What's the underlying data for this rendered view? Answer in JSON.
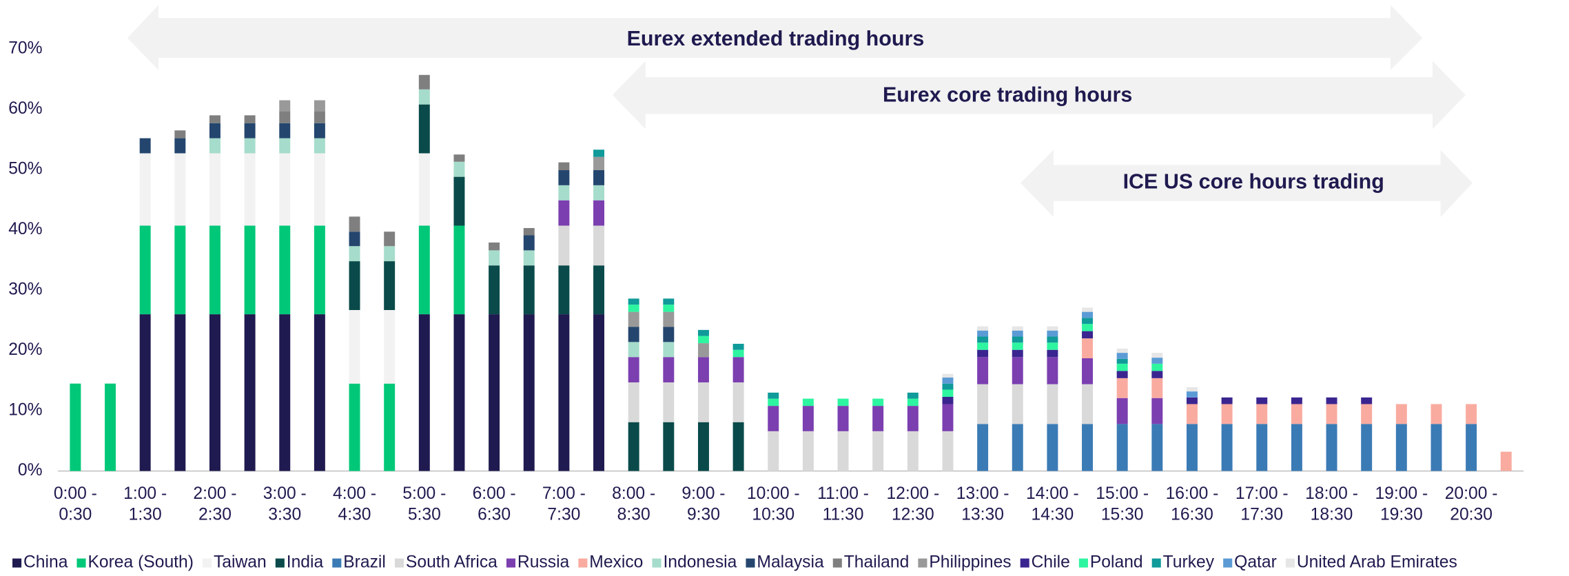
{
  "chart_data": {
    "type": "stacked_bar",
    "annotations": [
      {
        "text": "Eurex extended trading hours"
      },
      {
        "text": "Eurex core trading hours"
      },
      {
        "text": "ICE US core hours trading"
      }
    ],
    "categories": [
      "0:00 - 0:30",
      null,
      "1:00 - 1:30",
      null,
      "2:00 - 2:30",
      null,
      "3:00 - 3:30",
      null,
      "4:00 - 4:30",
      null,
      "5:00 - 5:30",
      null,
      "6:00 - 6:30",
      null,
      "7:00 - 7:30",
      null,
      "8:00 - 8:30",
      null,
      "9:00 - 9:30",
      null,
      "10:00 - 10:30",
      null,
      "11:00 - 11:30",
      null,
      "12:00 - 12:30",
      null,
      "13:00 - 13:30",
      null,
      "14:00 - 14:30",
      null,
      "15:00 - 15:30",
      null,
      "16:00 - 16:30",
      null,
      "17:00 - 17:30",
      null,
      "18:00 - 18:30",
      null,
      "19:00 - 19:30",
      null,
      "20:00 - 20:30",
      null
    ],
    "ylim": [
      0,
      70
    ],
    "yticks": [
      {
        "value": 0,
        "label": "0%"
      },
      {
        "value": 10,
        "label": "10%"
      },
      {
        "value": 20,
        "label": "20%"
      },
      {
        "value": 30,
        "label": "30%"
      },
      {
        "value": 40,
        "label": "40%"
      },
      {
        "value": 50,
        "label": "50%"
      },
      {
        "value": 60,
        "label": "60%"
      },
      {
        "value": 70,
        "label": "70%"
      }
    ],
    "series": [
      {
        "name": "China",
        "color": "#1f1a4f",
        "values": [
          null,
          null,
          26,
          26,
          26,
          26,
          26,
          26,
          null,
          null,
          26,
          26,
          26,
          26,
          26,
          26,
          null,
          null,
          null,
          null,
          null,
          null,
          null,
          null,
          null,
          null,
          null,
          null,
          null,
          null,
          null,
          null,
          null,
          null,
          null,
          null,
          null,
          null,
          null,
          null,
          null,
          null
        ]
      },
      {
        "name": "Korea (South)",
        "color": "#00c878",
        "values": [
          14.5,
          14.5,
          14.7,
          14.7,
          14.7,
          14.7,
          14.7,
          14.7,
          14.5,
          14.5,
          14.7,
          14.7,
          null,
          null,
          null,
          null,
          null,
          null,
          null,
          null,
          null,
          null,
          null,
          null,
          null,
          null,
          null,
          null,
          null,
          null,
          null,
          null,
          null,
          null,
          null,
          null,
          null,
          null,
          null,
          null,
          null,
          null
        ]
      },
      {
        "name": "Taiwan",
        "color": "#f2f2f2",
        "values": [
          null,
          null,
          12,
          12,
          12,
          12,
          12,
          12,
          12.2,
          12.2,
          12,
          null,
          null,
          null,
          null,
          null,
          null,
          null,
          null,
          null,
          null,
          null,
          null,
          null,
          null,
          null,
          null,
          null,
          null,
          null,
          null,
          null,
          null,
          null,
          null,
          null,
          null,
          null,
          null,
          null,
          null,
          null
        ]
      },
      {
        "name": "India",
        "color": "#0a4a4a",
        "values": [
          null,
          null,
          null,
          null,
          null,
          null,
          null,
          null,
          8.1,
          8.1,
          8.1,
          8.1,
          8.1,
          8.1,
          8.1,
          8.1,
          8.1,
          8.1,
          8.1,
          8.1,
          null,
          null,
          null,
          null,
          null,
          null,
          null,
          null,
          null,
          null,
          null,
          null,
          null,
          null,
          null,
          null,
          null,
          null,
          null,
          null,
          null,
          null
        ]
      },
      {
        "name": "Brazil",
        "color": "#3b7bb5",
        "values": [
          null,
          null,
          null,
          null,
          null,
          null,
          null,
          null,
          null,
          null,
          null,
          null,
          null,
          null,
          null,
          null,
          null,
          null,
          null,
          null,
          null,
          null,
          null,
          null,
          null,
          null,
          7.8,
          7.8,
          7.8,
          7.8,
          7.8,
          7.8,
          7.8,
          7.8,
          7.8,
          7.8,
          7.8,
          7.8,
          7.8,
          7.8,
          7.8,
          null
        ]
      },
      {
        "name": "South Africa",
        "color": "#d9d9d9",
        "values": [
          null,
          null,
          null,
          null,
          null,
          null,
          null,
          null,
          null,
          null,
          null,
          null,
          null,
          null,
          6.6,
          6.6,
          6.6,
          6.6,
          6.6,
          6.6,
          6.6,
          6.6,
          6.6,
          6.6,
          6.6,
          6.6,
          6.6,
          6.6,
          6.6,
          6.6,
          null,
          null,
          null,
          null,
          null,
          null,
          null,
          null,
          null,
          null,
          null,
          null
        ]
      },
      {
        "name": "Russia",
        "color": "#7b3fb0",
        "values": [
          null,
          null,
          null,
          null,
          null,
          null,
          null,
          null,
          null,
          null,
          null,
          null,
          null,
          null,
          4.2,
          4.2,
          4.2,
          4.2,
          4.2,
          4.2,
          4.2,
          4.2,
          4.2,
          4.2,
          4.2,
          4.5,
          4.5,
          4.5,
          4.5,
          4.3,
          4.3,
          4.3,
          null,
          null,
          null,
          null,
          null,
          null,
          null,
          null,
          null,
          null
        ]
      },
      {
        "name": "Mexico",
        "color": "#f9aba0",
        "values": [
          null,
          null,
          null,
          null,
          null,
          null,
          null,
          null,
          null,
          null,
          null,
          null,
          null,
          null,
          null,
          null,
          null,
          null,
          null,
          null,
          null,
          null,
          null,
          null,
          null,
          null,
          null,
          null,
          null,
          3.3,
          3.3,
          3.3,
          3.3,
          3.3,
          3.3,
          3.3,
          3.3,
          3.3,
          3.3,
          3.3,
          3.3,
          3.2
        ]
      },
      {
        "name": "Indonesia",
        "color": "#a6dccb",
        "values": [
          null,
          null,
          null,
          null,
          2.5,
          2.5,
          2.5,
          2.5,
          2.5,
          2.5,
          2.5,
          2.5,
          2.5,
          2.5,
          2.5,
          2.5,
          2.5,
          2.5,
          null,
          null,
          null,
          null,
          null,
          null,
          null,
          null,
          null,
          null,
          null,
          null,
          null,
          null,
          null,
          null,
          null,
          null,
          null,
          null,
          null,
          null,
          null,
          null
        ]
      },
      {
        "name": "Malaysia",
        "color": "#24466e",
        "values": [
          null,
          null,
          2.5,
          2.5,
          2.5,
          2.5,
          2.5,
          2.5,
          2.4,
          null,
          null,
          null,
          null,
          2.5,
          2.5,
          2.5,
          2.5,
          2.5,
          null,
          null,
          null,
          null,
          null,
          null,
          null,
          null,
          null,
          null,
          null,
          null,
          null,
          null,
          null,
          null,
          null,
          null,
          null,
          null,
          null,
          null,
          null,
          null
        ]
      },
      {
        "name": "Thailand",
        "color": "#7f7f7f",
        "values": [
          null,
          null,
          null,
          1.3,
          1.3,
          1.3,
          2,
          2,
          2.5,
          2.4,
          2.4,
          1.2,
          1.3,
          1.2,
          1.3,
          null,
          null,
          null,
          null,
          null,
          null,
          null,
          null,
          null,
          null,
          null,
          null,
          null,
          null,
          null,
          null,
          null,
          null,
          null,
          null,
          null,
          null,
          null,
          null,
          null,
          null,
          null
        ]
      },
      {
        "name": "Philippines",
        "color": "#999999",
        "values": [
          null,
          null,
          null,
          null,
          null,
          null,
          1.8,
          1.8,
          null,
          null,
          null,
          null,
          null,
          null,
          null,
          2.2,
          2.5,
          2.5,
          2.3,
          null,
          null,
          null,
          null,
          null,
          null,
          null,
          null,
          null,
          null,
          null,
          null,
          null,
          null,
          null,
          null,
          null,
          null,
          null,
          null,
          null,
          null,
          null
        ]
      },
      {
        "name": "Chile",
        "color": "#3a2590",
        "values": [
          null,
          null,
          null,
          null,
          null,
          null,
          null,
          null,
          null,
          null,
          null,
          null,
          null,
          null,
          null,
          null,
          null,
          null,
          null,
          null,
          null,
          null,
          null,
          null,
          null,
          1.2,
          1.2,
          1.2,
          1.2,
          1.2,
          1.2,
          1.2,
          1.1,
          1.1,
          1.1,
          1.1,
          1.1,
          1.1,
          null,
          null,
          null,
          null
        ]
      },
      {
        "name": "Poland",
        "color": "#2ef5a0",
        "values": [
          null,
          null,
          null,
          null,
          null,
          null,
          null,
          null,
          null,
          null,
          null,
          null,
          null,
          null,
          null,
          null,
          1.2,
          1.2,
          1.2,
          1.2,
          1.2,
          1.2,
          1.2,
          1.2,
          1.2,
          1.2,
          1.2,
          1.2,
          1.2,
          1.2,
          1.2,
          1.2,
          null,
          null,
          null,
          null,
          null,
          null,
          null,
          null,
          null,
          null
        ]
      },
      {
        "name": "Turkey",
        "color": "#109a9a",
        "values": [
          null,
          null,
          null,
          null,
          null,
          null,
          null,
          null,
          null,
          null,
          null,
          null,
          null,
          null,
          null,
          1.2,
          1,
          1,
          1,
          1,
          1,
          null,
          null,
          null,
          1,
          1,
          1,
          1,
          1,
          1,
          0.8,
          null,
          null,
          null,
          null,
          null,
          null,
          null,
          null,
          null,
          null,
          null
        ]
      },
      {
        "name": "Qatar",
        "color": "#5b9bd5",
        "values": [
          null,
          null,
          null,
          null,
          null,
          null,
          null,
          null,
          null,
          null,
          null,
          null,
          null,
          null,
          null,
          null,
          null,
          null,
          null,
          null,
          null,
          null,
          null,
          null,
          null,
          1,
          1,
          1,
          1,
          1,
          1,
          1,
          1,
          null,
          null,
          null,
          null,
          null,
          null,
          null,
          null,
          null
        ]
      },
      {
        "name": "United Arab Emirates",
        "color": "#e6e6e6",
        "values": [
          null,
          null,
          null,
          null,
          null,
          null,
          null,
          null,
          null,
          null,
          null,
          null,
          null,
          null,
          null,
          null,
          null,
          null,
          null,
          null,
          null,
          null,
          null,
          null,
          null,
          0.6,
          0.7,
          0.7,
          0.7,
          0.7,
          0.7,
          0.8,
          0.7,
          null,
          null,
          null,
          null,
          null,
          null,
          null,
          null,
          null
        ]
      }
    ]
  }
}
